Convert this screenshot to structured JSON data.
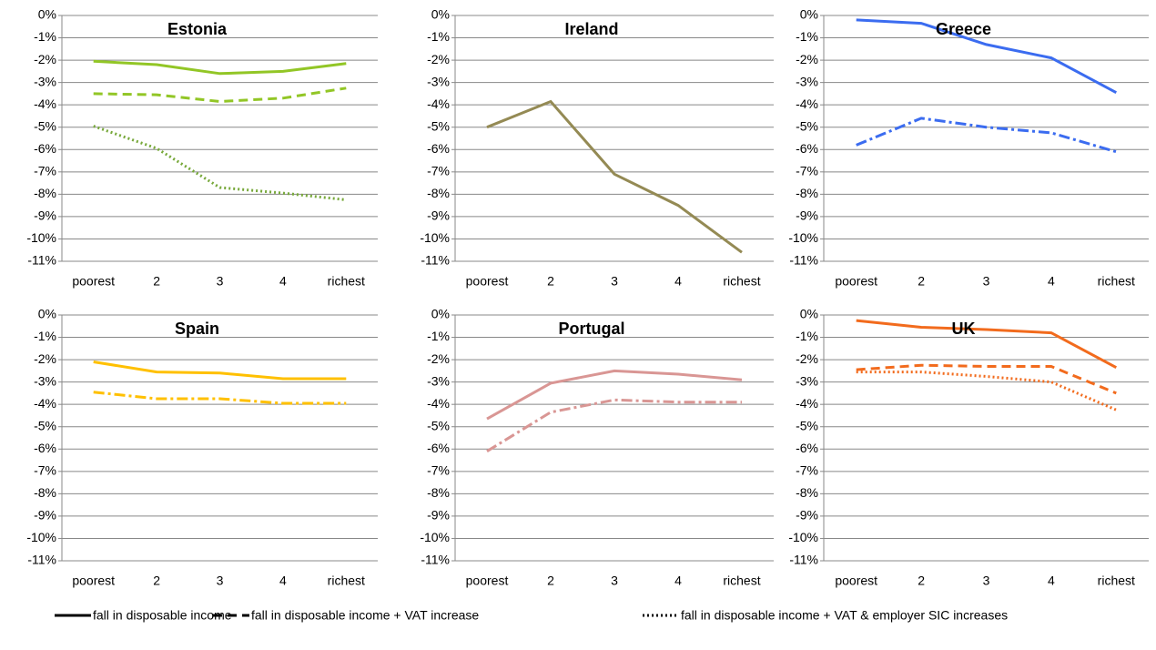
{
  "chart_data": [
    {
      "type": "line",
      "title": "Estonia",
      "categories": [
        "poorest",
        "2",
        "3",
        "4",
        "richest"
      ],
      "series": [
        {
          "color": "#92c626",
          "dash": "solid",
          "values": [
            -2.05,
            -2.2,
            -2.6,
            -2.5,
            -2.15
          ]
        },
        {
          "color": "#92c626",
          "dash": "dashed",
          "values": [
            -3.5,
            -3.55,
            -3.85,
            -3.7,
            -3.25
          ]
        },
        {
          "color": "#77a83a",
          "dash": "dotted",
          "values": [
            -4.95,
            -5.95,
            -7.7,
            -7.95,
            -8.25
          ]
        }
      ],
      "ylim": [
        -11,
        0
      ],
      "yticks": [
        {
          "value": 0,
          "label": "0%"
        },
        {
          "value": -1,
          "label": "-1%"
        },
        {
          "value": -2,
          "label": "-2%"
        },
        {
          "value": -3,
          "label": "-3%"
        },
        {
          "value": -4,
          "label": "-4%"
        },
        {
          "value": -5,
          "label": "-5%"
        },
        {
          "value": -6,
          "label": "-6%"
        },
        {
          "value": -7,
          "label": "-7%"
        },
        {
          "value": -8,
          "label": "-8%"
        },
        {
          "value": -9,
          "label": "-9%"
        },
        {
          "value": -10,
          "label": "-10%"
        },
        {
          "value": -11,
          "label": "-11%"
        }
      ],
      "grid": true
    },
    {
      "type": "line",
      "title": "Ireland",
      "categories": [
        "poorest",
        "2",
        "3",
        "4",
        "richest"
      ],
      "series": [
        {
          "color": "#948a54",
          "dash": "solid",
          "values": [
            -5.0,
            -3.85,
            -7.1,
            -8.5,
            -10.6
          ]
        }
      ],
      "ylim": [
        -11,
        0
      ],
      "yticks": [
        {
          "value": 0,
          "label": "0%"
        },
        {
          "value": -1,
          "label": "-1%"
        },
        {
          "value": -2,
          "label": "-2%"
        },
        {
          "value": -3,
          "label": "-3%"
        },
        {
          "value": -4,
          "label": "-4%"
        },
        {
          "value": -5,
          "label": "-5%"
        },
        {
          "value": -6,
          "label": "-6%"
        },
        {
          "value": -7,
          "label": "-7%"
        },
        {
          "value": -8,
          "label": "-8%"
        },
        {
          "value": -9,
          "label": "-9%"
        },
        {
          "value": -10,
          "label": "-10%"
        },
        {
          "value": -11,
          "label": "-11%"
        }
      ],
      "grid": true
    },
    {
      "type": "line",
      "title": "Greece",
      "categories": [
        "poorest",
        "2",
        "3",
        "4",
        "richest"
      ],
      "series": [
        {
          "color": "#3b6cf0",
          "dash": "solid",
          "values": [
            -0.2,
            -0.35,
            -1.3,
            -1.9,
            -3.45
          ]
        },
        {
          "color": "#3b6cf0",
          "dash": "dashdot",
          "values": [
            -5.8,
            -4.6,
            -5.0,
            -5.25,
            -6.1
          ]
        }
      ],
      "ylim": [
        -11,
        0
      ],
      "yticks": [
        {
          "value": 0,
          "label": "0%"
        },
        {
          "value": -1,
          "label": "-1%"
        },
        {
          "value": -2,
          "label": "-2%"
        },
        {
          "value": -3,
          "label": "-3%"
        },
        {
          "value": -4,
          "label": "-4%"
        },
        {
          "value": -5,
          "label": "-5%"
        },
        {
          "value": -6,
          "label": "-6%"
        },
        {
          "value": -7,
          "label": "-7%"
        },
        {
          "value": -8,
          "label": "-8%"
        },
        {
          "value": -9,
          "label": "-9%"
        },
        {
          "value": -10,
          "label": "-10%"
        },
        {
          "value": -11,
          "label": "-11%"
        }
      ],
      "grid": true
    },
    {
      "type": "line",
      "title": "Spain",
      "categories": [
        "poorest",
        "2",
        "3",
        "4",
        "richest"
      ],
      "series": [
        {
          "color": "#ffc000",
          "dash": "solid",
          "values": [
            -2.1,
            -2.55,
            -2.6,
            -2.85,
            -2.85
          ]
        },
        {
          "color": "#ffc000",
          "dash": "dashdot",
          "values": [
            -3.45,
            -3.75,
            -3.75,
            -3.95,
            -3.95
          ]
        }
      ],
      "ylim": [
        -11,
        0
      ],
      "yticks": [
        {
          "value": 0,
          "label": "0%"
        },
        {
          "value": -1,
          "label": "-1%"
        },
        {
          "value": -2,
          "label": "-2%"
        },
        {
          "value": -3,
          "label": "-3%"
        },
        {
          "value": -4,
          "label": "-4%"
        },
        {
          "value": -5,
          "label": "-5%"
        },
        {
          "value": -6,
          "label": "-6%"
        },
        {
          "value": -7,
          "label": "-7%"
        },
        {
          "value": -8,
          "label": "-8%"
        },
        {
          "value": -9,
          "label": "-9%"
        },
        {
          "value": -10,
          "label": "-10%"
        },
        {
          "value": -11,
          "label": "-11%"
        }
      ],
      "grid": true
    },
    {
      "type": "line",
      "title": "Portugal",
      "categories": [
        "poorest",
        "2",
        "3",
        "4",
        "richest"
      ],
      "series": [
        {
          "color": "#d99694",
          "dash": "solid",
          "values": [
            -4.65,
            -3.05,
            -2.5,
            -2.65,
            -2.9
          ]
        },
        {
          "color": "#d99694",
          "dash": "dashdot",
          "values": [
            -6.1,
            -4.35,
            -3.8,
            -3.9,
            -3.9
          ]
        }
      ],
      "ylim": [
        -11,
        0
      ],
      "yticks": [
        {
          "value": 0,
          "label": "0%"
        },
        {
          "value": -1,
          "label": "-1%"
        },
        {
          "value": -2,
          "label": "-2%"
        },
        {
          "value": -3,
          "label": "-3%"
        },
        {
          "value": -4,
          "label": "-4%"
        },
        {
          "value": -5,
          "label": "-5%"
        },
        {
          "value": -6,
          "label": "-6%"
        },
        {
          "value": -7,
          "label": "-7%"
        },
        {
          "value": -8,
          "label": "-8%"
        },
        {
          "value": -9,
          "label": "-9%"
        },
        {
          "value": -10,
          "label": "-10%"
        },
        {
          "value": -11,
          "label": "-11%"
        }
      ],
      "grid": true
    },
    {
      "type": "line",
      "title": "UK",
      "categories": [
        "poorest",
        "2",
        "3",
        "4",
        "richest"
      ],
      "series": [
        {
          "color": "#f26b1d",
          "dash": "solid",
          "values": [
            -0.25,
            -0.55,
            -0.65,
            -0.8,
            -2.35
          ]
        },
        {
          "color": "#f26b1d",
          "dash": "dashed",
          "values": [
            -2.45,
            -2.25,
            -2.3,
            -2.3,
            -3.5
          ]
        },
        {
          "color": "#f26b1d",
          "dash": "dotted",
          "values": [
            -2.55,
            -2.55,
            -2.75,
            -3.0,
            -4.25
          ]
        }
      ],
      "ylim": [
        -11,
        0
      ],
      "yticks": [
        {
          "value": 0,
          "label": "0%"
        },
        {
          "value": -1,
          "label": "-1%"
        },
        {
          "value": -2,
          "label": "-2%"
        },
        {
          "value": -3,
          "label": "-3%"
        },
        {
          "value": -4,
          "label": "-4%"
        },
        {
          "value": -5,
          "label": "-5%"
        },
        {
          "value": -6,
          "label": "-6%"
        },
        {
          "value": -7,
          "label": "-7%"
        },
        {
          "value": -8,
          "label": "-8%"
        },
        {
          "value": -9,
          "label": "-9%"
        },
        {
          "value": -10,
          "label": "-10%"
        },
        {
          "value": -11,
          "label": "-11%"
        }
      ],
      "grid": true
    }
  ],
  "legend": [
    {
      "label": "fall in disposable income",
      "dash": "solid"
    },
    {
      "label": "fall in disposable income + VAT increase",
      "dash": "dashed"
    },
    {
      "label": "fall in disposable income + VAT & employer SIC increases",
      "dash": "dotted"
    }
  ]
}
